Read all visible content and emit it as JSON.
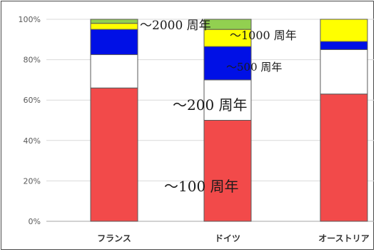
{
  "chart_data": {
    "type": "bar",
    "stacked": true,
    "ylim": [
      0,
      100
    ],
    "yticks": [
      "0%",
      "20%",
      "40%",
      "60%",
      "80%",
      "100%"
    ],
    "ytick_values": [
      0,
      20,
      40,
      60,
      80,
      100
    ],
    "grid": true,
    "categories": [
      "フランス",
      "ドイツ",
      "オーストリア"
    ],
    "series": [
      {
        "name": "～100 周年",
        "color": "#f24a4a",
        "values": [
          66,
          50,
          63
        ]
      },
      {
        "name": "～200 周年",
        "color": "#ffffff",
        "values": [
          16.5,
          20,
          22
        ]
      },
      {
        "name": "～500 周年",
        "color": "#0010e6",
        "values": [
          12.5,
          16.5,
          4
        ]
      },
      {
        "name": "～1000 周年",
        "color": "#ffff00",
        "values": [
          3,
          8.5,
          11
        ]
      },
      {
        "name": "～2000 周年",
        "color": "#92d050",
        "values": [
          2,
          5,
          0
        ]
      }
    ],
    "annotations": [
      "～2000 周年",
      "～1000 周年",
      "～500 周年",
      "～200 周年",
      "～100 周年"
    ]
  }
}
